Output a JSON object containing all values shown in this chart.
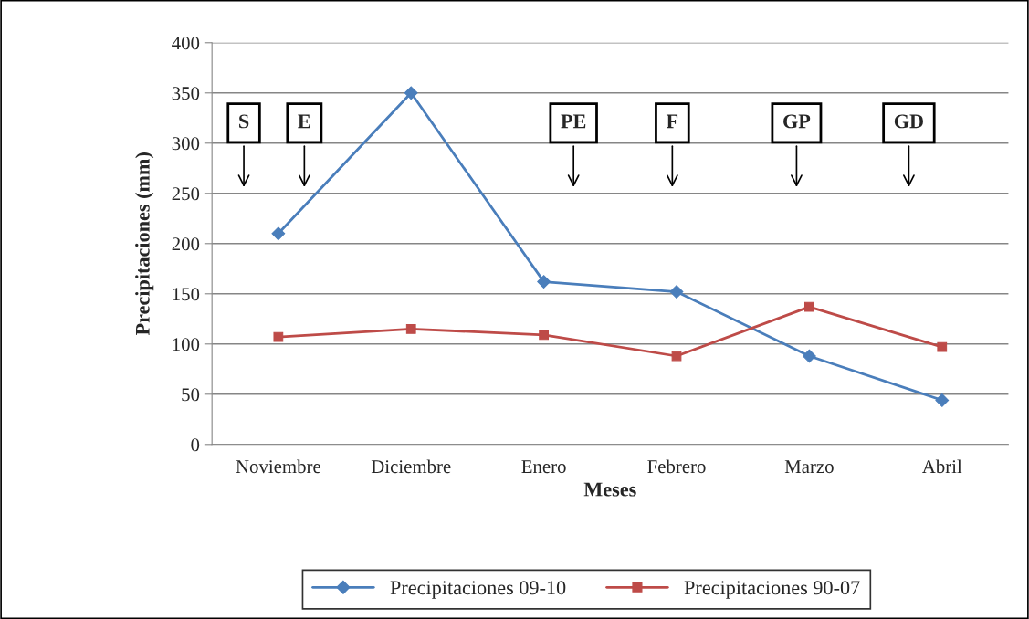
{
  "chart_data": {
    "type": "line",
    "xlabel": "Meses",
    "ylabel": "Precipitaciones (mm)",
    "categories": [
      "Noviembre",
      "Diciembre",
      "Enero",
      "Febrero",
      "Marzo",
      "Abril"
    ],
    "series": [
      {
        "name": "Precipitaciones 09-10",
        "color": "#4a7ebb",
        "marker": "diamond",
        "values": [
          210,
          350,
          162,
          152,
          88,
          44
        ]
      },
      {
        "name": "Precipitaciones 90-07",
        "color": "#be4b48",
        "marker": "square",
        "values": [
          107,
          115,
          109,
          88,
          137,
          97
        ]
      }
    ],
    "ylim": [
      0,
      400
    ],
    "yticks": [
      0,
      50,
      100,
      150,
      200,
      250,
      300,
      350,
      400
    ],
    "grid": "y",
    "legend": "bottom",
    "line_style": "solid",
    "annotations": [
      "S",
      "E",
      "PE",
      "F",
      "GP",
      "GD"
    ]
  }
}
